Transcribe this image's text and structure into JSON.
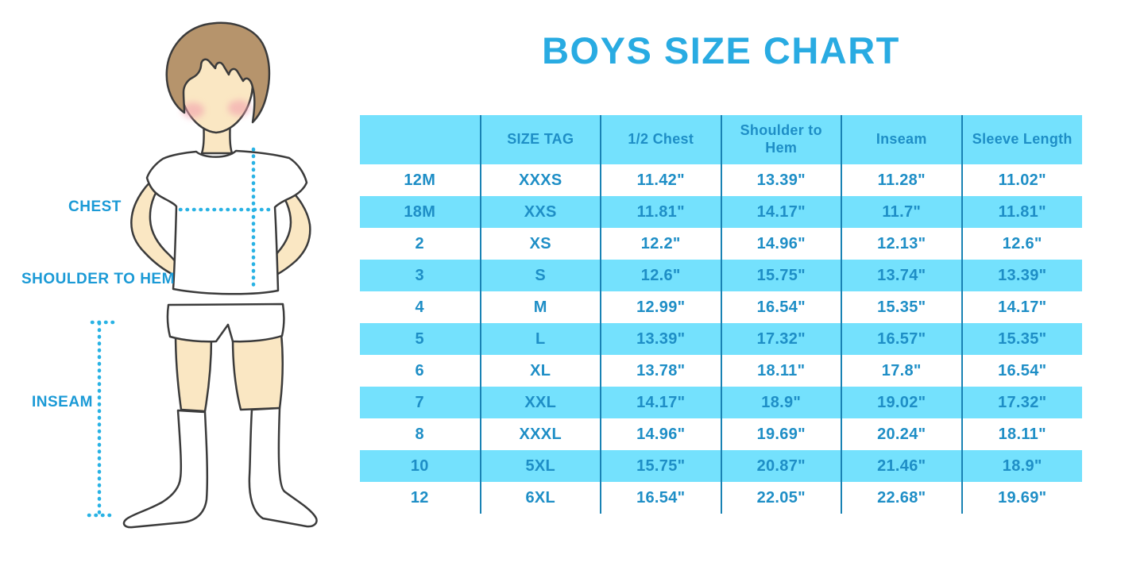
{
  "title": "BOYS SIZE CHART",
  "figure": {
    "labels": {
      "chest": "CHEST",
      "shoulder_to_hem": "SHOULDER TO HEM",
      "inseam": "INSEAM"
    }
  },
  "chart_data": {
    "type": "table",
    "title": "BOYS SIZE CHART",
    "columns": [
      "",
      "SIZE TAG",
      "1/2 Chest",
      "Shoulder to Hem",
      "Inseam",
      "Sleeve Length"
    ],
    "rows": [
      [
        "12M",
        "XXXS",
        "11.42\"",
        "13.39\"",
        "11.28\"",
        "11.02\""
      ],
      [
        "18M",
        "XXS",
        "11.81\"",
        "14.17\"",
        "11.7\"",
        "11.81\""
      ],
      [
        "2",
        "XS",
        "12.2\"",
        "14.96\"",
        "12.13\"",
        "12.6\""
      ],
      [
        "3",
        "S",
        "12.6\"",
        "15.75\"",
        "13.74\"",
        "13.39\""
      ],
      [
        "4",
        "M",
        "12.99\"",
        "16.54\"",
        "15.35\"",
        "14.17\""
      ],
      [
        "5",
        "L",
        "13.39\"",
        "17.32\"",
        "16.57\"",
        "15.35\""
      ],
      [
        "6",
        "XL",
        "13.78\"",
        "18.11\"",
        "17.8\"",
        "16.54\""
      ],
      [
        "7",
        "XXL",
        "14.17\"",
        "18.9\"",
        "19.02\"",
        "17.32\""
      ],
      [
        "8",
        "XXXL",
        "14.96\"",
        "19.69\"",
        "20.24\"",
        "18.11\""
      ],
      [
        "10",
        "5XL",
        "15.75\"",
        "20.87\"",
        "21.46\"",
        "18.9\""
      ],
      [
        "12",
        "6XL",
        "16.54\"",
        "22.05\"",
        "22.68\"",
        "19.69\""
      ]
    ]
  },
  "colors": {
    "title_blue": "#29ABE2",
    "label_blue": "#1B9AD6",
    "cell_text_blue": "#1E8EC6",
    "stripe_cyan": "#74E1FD",
    "divider_blue": "#1982B4",
    "dotted_line": "#29B2E4",
    "skin": "#FAE7C3",
    "hair_brown": "#B6946C",
    "outline": "#3B3B3B",
    "blush_pink": "#F2A0AD"
  }
}
